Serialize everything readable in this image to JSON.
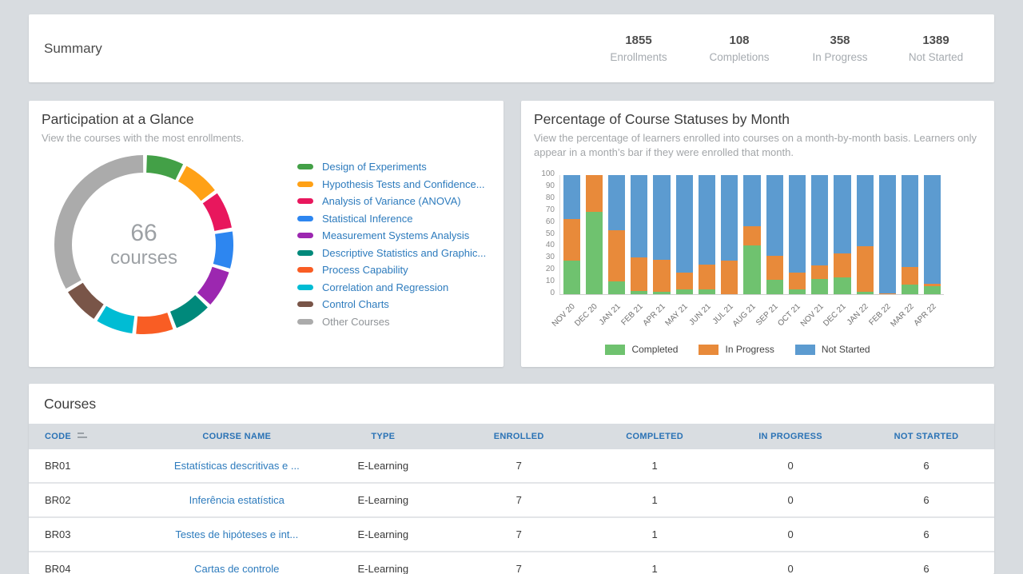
{
  "summary": {
    "title": "Summary",
    "stats": [
      {
        "value": "1855",
        "label": "Enrollments"
      },
      {
        "value": "108",
        "label": "Completions"
      },
      {
        "value": "358",
        "label": "In Progress"
      },
      {
        "value": "1389",
        "label": "Not Started"
      }
    ]
  },
  "participation": {
    "title": "Participation at a Glance",
    "subtitle": "View the courses with the most enrollments.",
    "center_value": "66",
    "center_label": "courses"
  },
  "statuses": {
    "title": "Percentage of Course Statuses by Month",
    "subtitle": "View the percentage of learners enrolled into courses on a month-by-month basis. Learners only appear in a month’s bar if they were enrolled that month."
  },
  "chart_data": [
    {
      "type": "donut",
      "title": "Participation at a Glance",
      "center_value": "66",
      "center_label": "courses",
      "gap_deg": 2.5,
      "start_deg": 2,
      "segments": [
        {
          "label": "Design of Experiments",
          "color": "#43a047",
          "sweep_deg": 24,
          "link": true
        },
        {
          "label": "Hypothesis Tests and Confidence...",
          "color": "#ffa116",
          "sweep_deg": 24,
          "link": true
        },
        {
          "label": "Analysis of Variance (ANOVA)",
          "color": "#e8175d",
          "sweep_deg": 24,
          "link": true
        },
        {
          "label": "Statistical Inference",
          "color": "#2d86f0",
          "sweep_deg": 24,
          "link": true
        },
        {
          "label": "Measurement Systems Analysis",
          "color": "#9c27b0",
          "sweep_deg": 24,
          "link": true
        },
        {
          "label": "Descriptive Statistics and Graphic...",
          "color": "#00897b",
          "sweep_deg": 24,
          "link": true
        },
        {
          "label": "Process Capability",
          "color": "#f95d24",
          "sweep_deg": 24,
          "link": true
        },
        {
          "label": "Correlation and Regression",
          "color": "#00bcd4",
          "sweep_deg": 24,
          "link": true
        },
        {
          "label": "Control Charts",
          "color": "#795548",
          "sweep_deg": 24,
          "link": true
        },
        {
          "label": "Other Courses",
          "color": "#ababab",
          "sweep_deg": 119,
          "link": false
        }
      ]
    },
    {
      "type": "bar",
      "stacked": true,
      "values_are_percent": true,
      "title": "Percentage of Course Statuses by Month",
      "categories": [
        "NOV 20",
        "DEC 20",
        "JAN 21",
        "FEB 21",
        "APR 21",
        "MAY 21",
        "JUN 21",
        "JUL 21",
        "AUG 21",
        "SEP 21",
        "OCT 21",
        "NOV 21",
        "DEC 21",
        "JAN 22",
        "FEB 22",
        "MAR 22",
        "APR 22"
      ],
      "series": [
        {
          "name": "Completed",
          "color": "#6fc26f",
          "values": [
            28,
            69,
            11,
            3,
            2,
            4,
            4,
            0,
            41,
            12,
            4,
            13,
            14,
            2,
            0,
            8,
            7
          ]
        },
        {
          "name": "In Progress",
          "color": "#e88a3a",
          "values": [
            35,
            31,
            43,
            28,
            27,
            14,
            21,
            28,
            16,
            20,
            14,
            11,
            20,
            38,
            1,
            15,
            2
          ]
        },
        {
          "name": "Not Started",
          "color": "#5c9bd0",
          "values": [
            37,
            0,
            46,
            69,
            71,
            82,
            75,
            72,
            43,
            68,
            82,
            76,
            66,
            60,
            99,
            77,
            91
          ]
        }
      ],
      "ylim": [
        0,
        100
      ],
      "yticks": [
        0,
        10,
        20,
        30,
        40,
        50,
        60,
        70,
        80,
        90,
        100
      ],
      "legend_position": "bottom",
      "grid": false
    }
  ],
  "courses_table": {
    "title": "Courses",
    "columns": [
      "CODE",
      "COURSE NAME",
      "TYPE",
      "ENROLLED",
      "COMPLETED",
      "IN PROGRESS",
      "NOT STARTED"
    ],
    "rows": [
      [
        "BR01",
        "Estatísticas descritivas e ...",
        "E-Learning",
        "7",
        "1",
        "0",
        "6"
      ],
      [
        "BR02",
        "Inferência estatística",
        "E-Learning",
        "7",
        "1",
        "0",
        "6"
      ],
      [
        "BR03",
        "Testes de hipóteses e int...",
        "E-Learning",
        "7",
        "1",
        "0",
        "6"
      ],
      [
        "BR04",
        "Cartas de controle",
        "E-Learning",
        "7",
        "1",
        "0",
        "6"
      ]
    ]
  },
  "colors": {
    "page_background": "#d8dce0",
    "card_background": "#ffffff",
    "link_blue": "#2d7bbd",
    "header_blue": "#2a72b5",
    "completed_green": "#6fc26f",
    "in_progress_orange": "#e88a3a",
    "not_started_blue": "#5c9bd0"
  }
}
